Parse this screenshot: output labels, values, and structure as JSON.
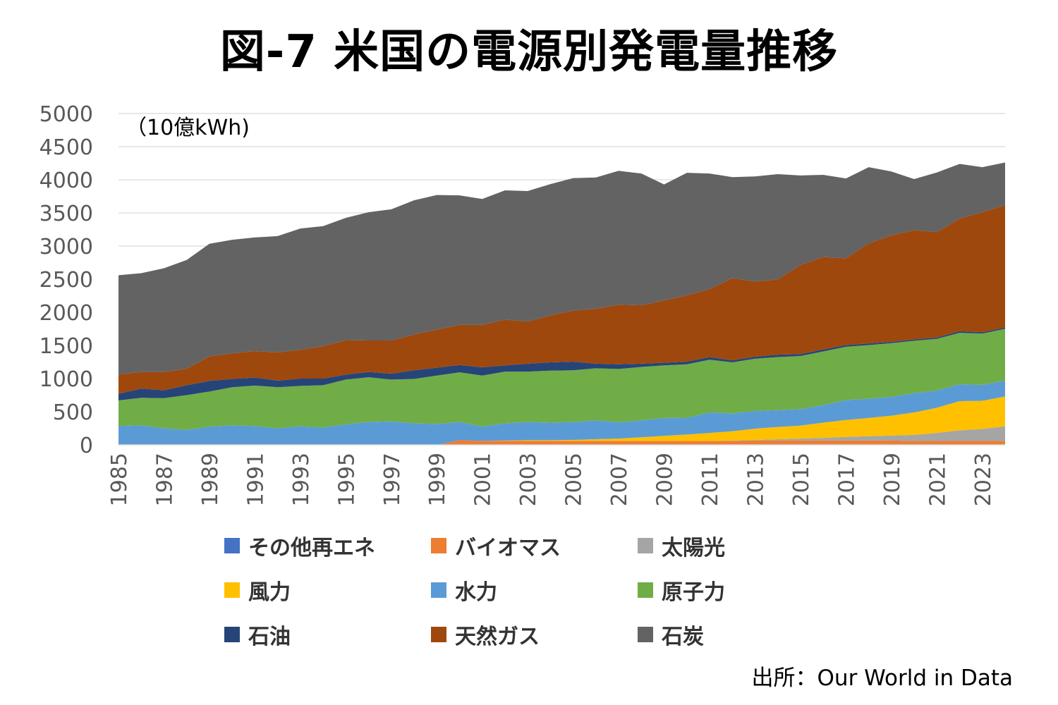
{
  "title": "図-7 米国の電源別発電量推移",
  "unit_label": "（10億kWh)",
  "source": "出所：Our World in Data",
  "chart_data": {
    "type": "area",
    "stacked": true,
    "title": "図-7 米国の電源別発電量推移",
    "ylabel": "（10億kWh)",
    "xlabel": "",
    "ylim": [
      0,
      5000
    ],
    "y_ticks": [
      "0",
      "500",
      "1000",
      "1500",
      "2000",
      "2500",
      "3000",
      "3500",
      "4000",
      "4500",
      "5000"
    ],
    "x_tick_labels": [
      "1985",
      "1987",
      "1989",
      "1991",
      "1993",
      "1995",
      "1997",
      "1999",
      "2001",
      "2003",
      "2005",
      "2007",
      "2009",
      "2011",
      "2013",
      "2015",
      "2017",
      "2019",
      "2021",
      "2023"
    ],
    "grid": true,
    "legend_position": "bottom",
    "x": [
      1985,
      1986,
      1987,
      1988,
      1989,
      1990,
      1991,
      1992,
      1993,
      1994,
      1995,
      1996,
      1997,
      1998,
      1999,
      2000,
      2001,
      2002,
      2003,
      2004,
      2005,
      2006,
      2007,
      2008,
      2009,
      2010,
      2011,
      2012,
      2013,
      2014,
      2015,
      2016,
      2017,
      2018,
      2019,
      2020,
      2021,
      2022,
      2023,
      2024
    ],
    "series": [
      {
        "name": "その他再エネ",
        "color": "#4472C4",
        "values": [
          0,
          0,
          0,
          0,
          0,
          0,
          0,
          0,
          0,
          0,
          0,
          0,
          0,
          0,
          0,
          0,
          0,
          0,
          0,
          0,
          0,
          0,
          0,
          0,
          0,
          0,
          0,
          0,
          0,
          0,
          0,
          0,
          0,
          0,
          0,
          0,
          0,
          0,
          0,
          0
        ]
      },
      {
        "name": "バイオマス",
        "color": "#ED7D31",
        "values": [
          0,
          0,
          0,
          0,
          0,
          0,
          0,
          0,
          0,
          0,
          0,
          0,
          0,
          0,
          0,
          70,
          60,
          60,
          60,
          60,
          60,
          60,
          60,
          60,
          60,
          60,
          60,
          60,
          65,
          65,
          65,
          65,
          65,
          65,
          65,
          60,
          60,
          60,
          60,
          60
        ]
      },
      {
        "name": "太陽光",
        "color": "#A5A5A5",
        "values": [
          0,
          0,
          0,
          0,
          0,
          0,
          0,
          0,
          0,
          0,
          0,
          0,
          0,
          0,
          0,
          0,
          0,
          0,
          0,
          0,
          0,
          0,
          0,
          0,
          0,
          0,
          0,
          5,
          10,
          20,
          30,
          40,
          55,
          65,
          75,
          90,
          120,
          160,
          180,
          220
        ]
      },
      {
        "name": "風力",
        "color": "#FFC000",
        "values": [
          0,
          0,
          0,
          0,
          0,
          0,
          0,
          0,
          0,
          0,
          0,
          0,
          0,
          0,
          0,
          0,
          0,
          5,
          10,
          10,
          15,
          25,
          35,
          55,
          75,
          95,
          120,
          140,
          170,
          185,
          195,
          230,
          255,
          275,
          300,
          340,
          380,
          440,
          425,
          450
        ]
      },
      {
        "name": "水力",
        "color": "#5B9BD5",
        "values": [
          285,
          295,
          250,
          225,
          275,
          295,
          285,
          250,
          280,
          260,
          310,
          345,
          355,
          325,
          315,
          275,
          215,
          260,
          275,
          265,
          270,
          285,
          245,
          255,
          270,
          255,
          310,
          270,
          265,
          255,
          250,
          265,
          300,
          290,
          285,
          290,
          260,
          255,
          240,
          240
        ]
      },
      {
        "name": "原子力",
        "color": "#70AD47",
        "values": [
          385,
          415,
          455,
          525,
          530,
          575,
          610,
          620,
          610,
          640,
          675,
          675,
          630,
          670,
          730,
          750,
          770,
          780,
          760,
          785,
          780,
          785,
          805,
          805,
          795,
          805,
          795,
          770,
          790,
          800,
          800,
          810,
          805,
          810,
          810,
          790,
          780,
          775,
          775,
          780
        ]
      },
      {
        "name": "石油",
        "color": "#264478",
        "values": [
          100,
          140,
          120,
          150,
          160,
          125,
          120,
          100,
          110,
          100,
          75,
          80,
          90,
          130,
          120,
          110,
          125,
          95,
          120,
          125,
          130,
          70,
          70,
          50,
          40,
          40,
          40,
          30,
          30,
          35,
          30,
          30,
          25,
          25,
          20,
          20,
          20,
          25,
          20,
          20
        ]
      },
      {
        "name": "天然ガス",
        "color": "#9E480E",
        "values": [
          290,
          250,
          275,
          250,
          370,
          385,
          400,
          425,
          435,
          490,
          520,
          475,
          500,
          540,
          575,
          605,
          640,
          690,
          635,
          710,
          770,
          830,
          900,
          880,
          940,
          1000,
          1025,
          1240,
          1135,
          1135,
          1345,
          1395,
          1310,
          1510,
          1605,
          1650,
          1590,
          1700,
          1810,
          1850
        ]
      },
      {
        "name": "石炭",
        "color": "#636363",
        "values": [
          1500,
          1490,
          1565,
          1640,
          1700,
          1715,
          1715,
          1755,
          1830,
          1810,
          1845,
          1935,
          1980,
          2025,
          2030,
          1955,
          1900,
          1950,
          1970,
          1980,
          2000,
          1980,
          2020,
          1990,
          1750,
          1850,
          1745,
          1525,
          1585,
          1590,
          1350,
          1240,
          1205,
          1150,
          965,
          770,
          900,
          825,
          680,
          640
        ]
      }
    ]
  }
}
